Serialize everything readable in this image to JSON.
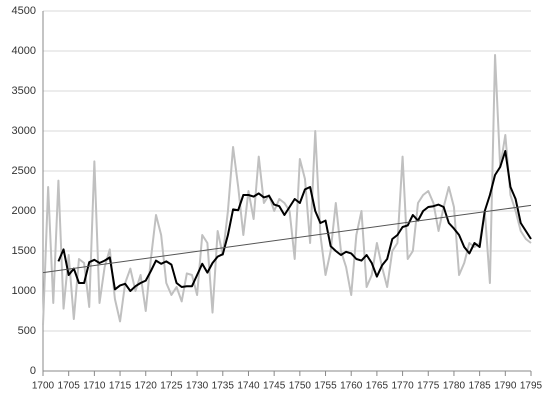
{
  "chart_data": {
    "type": "line",
    "x": [
      1700,
      1701,
      1702,
      1703,
      1704,
      1705,
      1706,
      1707,
      1708,
      1709,
      1710,
      1711,
      1712,
      1713,
      1714,
      1715,
      1716,
      1717,
      1718,
      1719,
      1720,
      1721,
      1722,
      1723,
      1724,
      1725,
      1726,
      1727,
      1728,
      1729,
      1730,
      1731,
      1732,
      1733,
      1734,
      1735,
      1736,
      1737,
      1738,
      1739,
      1740,
      1741,
      1742,
      1743,
      1744,
      1745,
      1746,
      1747,
      1748,
      1749,
      1750,
      1751,
      1752,
      1753,
      1754,
      1755,
      1756,
      1757,
      1758,
      1759,
      1760,
      1761,
      1762,
      1763,
      1764,
      1765,
      1766,
      1767,
      1768,
      1769,
      1770,
      1771,
      1772,
      1773,
      1774,
      1775,
      1776,
      1777,
      1778,
      1779,
      1780,
      1781,
      1782,
      1783,
      1784,
      1785,
      1786,
      1787,
      1788,
      1789,
      1790,
      1791,
      1792,
      1793,
      1794,
      1795
    ],
    "series": [
      {
        "color": "#c0c0c0",
        "width": 2,
        "values": [
          575,
          2300,
          850,
          2380,
          780,
          1450,
          650,
          1400,
          1350,
          800,
          2620,
          850,
          1300,
          1520,
          900,
          620,
          1100,
          1280,
          1000,
          1200,
          750,
          1400,
          1950,
          1700,
          1100,
          950,
          1050,
          870,
          1220,
          1200,
          950,
          1700,
          1600,
          730,
          1750,
          1450,
          2000,
          2800,
          2300,
          1700,
          2250,
          1900,
          2680,
          2100,
          2200,
          2000,
          2150,
          2100,
          2000,
          1400,
          2650,
          2400,
          1600,
          3000,
          1700,
          1200,
          1500,
          2100,
          1500,
          1300,
          950,
          1700,
          2000,
          1050,
          1200,
          1600,
          1300,
          1050,
          1500,
          1600,
          2680,
          1400,
          1500,
          2100,
          2200,
          2250,
          2100,
          1750,
          2050,
          2300,
          2050,
          1200,
          1350,
          1600,
          1550,
          1600,
          2000,
          1100,
          3950,
          2550,
          2950,
          2200,
          2000,
          1750,
          1650,
          1600
        ]
      },
      {
        "color": "#000000",
        "width": 2,
        "values": [
          null,
          null,
          null,
          1370,
          1520,
          1200,
          1280,
          1100,
          1100,
          1360,
          1390,
          1350,
          1380,
          1420,
          1020,
          1070,
          1090,
          1000,
          1060,
          1100,
          1130,
          1250,
          1380,
          1340,
          1370,
          1330,
          1100,
          1050,
          1060,
          1060,
          1200,
          1340,
          1230,
          1350,
          1430,
          1460,
          1700,
          2020,
          2010,
          2200,
          2200,
          2180,
          2220,
          2170,
          2190,
          2080,
          2060,
          1950,
          2050,
          2150,
          2100,
          2270,
          2300,
          2000,
          1850,
          1880,
          1560,
          1500,
          1450,
          1490,
          1470,
          1400,
          1380,
          1450,
          1350,
          1180,
          1320,
          1400,
          1650,
          1700,
          1800,
          1820,
          1950,
          1880,
          2000,
          2050,
          2060,
          2080,
          2050,
          1850,
          1780,
          1700,
          1550,
          1470,
          1600,
          1550,
          2000,
          2200,
          2450,
          2550,
          2750,
          2300,
          2150,
          1850,
          1750,
          1650
        ]
      }
    ],
    "trendline": {
      "x": [
        1700,
        1795
      ],
      "values": [
        1230,
        2070
      ],
      "color": "#555555"
    },
    "xlim": [
      1700,
      1795
    ],
    "xticks": [
      1700,
      1705,
      1710,
      1715,
      1720,
      1725,
      1730,
      1735,
      1740,
      1745,
      1750,
      1755,
      1760,
      1765,
      1770,
      1775,
      1780,
      1785,
      1790,
      1795
    ],
    "ylim": [
      0,
      4500
    ],
    "yticks": [
      0,
      500,
      1000,
      1500,
      2000,
      2500,
      3000,
      3500,
      4000,
      4500
    ],
    "grid": true
  }
}
